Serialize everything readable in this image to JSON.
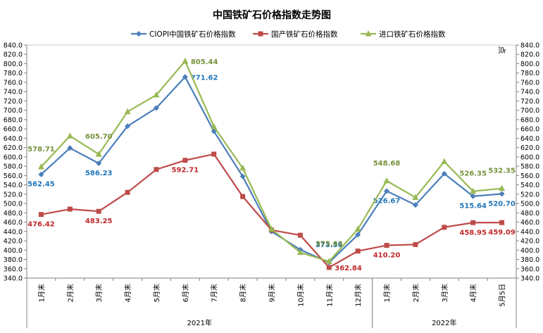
{
  "chart_data": {
    "type": "line",
    "title": "中国铁矿石价格指数走势图",
    "ylabel_right": "点",
    "categories": [
      "1月末",
      "2月末",
      "3月末",
      "4月末",
      "5月末",
      "6月末",
      "7月末",
      "8月末",
      "9月末",
      "10月末",
      "11月末",
      "12月末",
      "1月末",
      "2月末",
      "3月末",
      "4月末",
      "5月5日"
    ],
    "year_groups": [
      {
        "label": "2021年",
        "from": 0,
        "to": 11
      },
      {
        "label": "2022年",
        "from": 12,
        "to": 16
      }
    ],
    "ylim": [
      340,
      840
    ],
    "ytick_step": 20,
    "legend_position": "top",
    "grid": false,
    "series": [
      {
        "name": "CIOPI中国铁矿石价格指数",
        "color": "#4a7ebb",
        "marker": "diamond",
        "label_color": "#1f75b8",
        "values": [
          562.45,
          619,
          586.23,
          666,
          705,
          771.62,
          655,
          558,
          440,
          401,
          373.59,
          433,
          526.67,
          497,
          564,
          515.64,
          520.7
        ],
        "labels": [
          {
            "index": 0,
            "text": "562.45",
            "pos": "below"
          },
          {
            "index": 2,
            "text": "586.23",
            "pos": "below"
          },
          {
            "index": 5,
            "text": "771.62",
            "pos": "right"
          },
          {
            "index": 10,
            "text": "373.59",
            "pos": "above"
          },
          {
            "index": 12,
            "text": "526.67",
            "pos": "below"
          },
          {
            "index": 15,
            "text": "515.64",
            "pos": "below"
          },
          {
            "index": 16,
            "text": "520.70",
            "pos": "below"
          }
        ]
      },
      {
        "name": "国产铁矿石价格指数",
        "color": "#be4b48",
        "marker": "square",
        "label_color": "#c0282a",
        "values": [
          476.42,
          488,
          483.25,
          524,
          573,
          592.71,
          606,
          515,
          443,
          432,
          362.84,
          398,
          410.2,
          412,
          449,
          458.95,
          459.09
        ],
        "labels": [
          {
            "index": 0,
            "text": "476.42",
            "pos": "below"
          },
          {
            "index": 2,
            "text": "483.25",
            "pos": "below"
          },
          {
            "index": 5,
            "text": "592.71",
            "pos": "below"
          },
          {
            "index": 10,
            "text": "362.84",
            "pos": "right"
          },
          {
            "index": 12,
            "text": "410.20",
            "pos": "below"
          },
          {
            "index": 15,
            "text": "458.95",
            "pos": "below"
          },
          {
            "index": 16,
            "text": "459.09",
            "pos": "below"
          }
        ]
      },
      {
        "name": "进口铁矿石价格指数",
        "color": "#98b954",
        "marker": "triangle",
        "label_color": "#76923c",
        "values": [
          578.71,
          645,
          605.7,
          697,
          733,
          805.44,
          665,
          576,
          445,
          395,
          375.63,
          445,
          548.68,
          513,
          590,
          526.35,
          532.35
        ],
        "labels": [
          {
            "index": 0,
            "text": "578.71",
            "pos": "above"
          },
          {
            "index": 2,
            "text": "605.70",
            "pos": "above"
          },
          {
            "index": 5,
            "text": "805.44",
            "pos": "right"
          },
          {
            "index": 10,
            "text": "375.63",
            "pos": "above"
          },
          {
            "index": 12,
            "text": "548.68",
            "pos": "above"
          },
          {
            "index": 15,
            "text": "526.35",
            "pos": "above"
          },
          {
            "index": 16,
            "text": "532.35",
            "pos": "above"
          }
        ]
      }
    ]
  }
}
